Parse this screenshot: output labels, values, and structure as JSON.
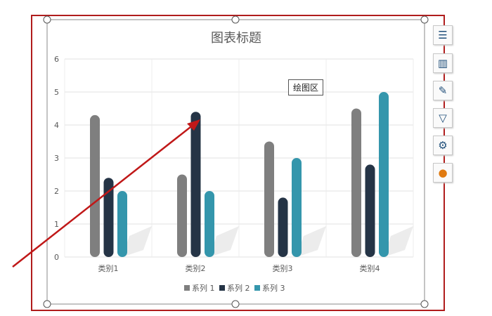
{
  "chart_data": {
    "type": "bar",
    "title": "图表标题",
    "categories": [
      "类别1",
      "类别2",
      "类别3",
      "类别4"
    ],
    "series": [
      {
        "name": "系列 1",
        "values": [
          4.3,
          2.5,
          3.5,
          4.5
        ],
        "color": "#7f7f7f"
      },
      {
        "name": "系列 2",
        "values": [
          2.4,
          4.4,
          1.8,
          2.8
        ],
        "color": "#253446"
      },
      {
        "name": "系列 3",
        "values": [
          2,
          2,
          3,
          5
        ],
        "color": "#3496ac"
      }
    ],
    "ylim": [
      0,
      6
    ],
    "yticks": [
      0,
      1,
      2,
      3,
      4,
      5,
      6
    ],
    "grid": true,
    "legend": "bottom"
  },
  "tooltip": "绘图区",
  "tools": [
    "chart-elements-icon",
    "chart-styles-icon",
    "brush-icon",
    "filter-icon",
    "settings-icon",
    "idea-icon"
  ],
  "colors": {
    "selection": "#b01c1c",
    "arrow": "#c01818"
  }
}
